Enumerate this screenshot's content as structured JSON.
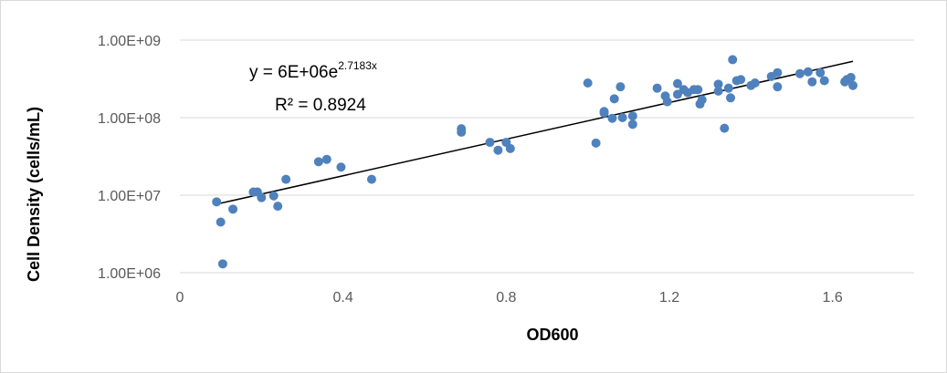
{
  "chart_data": {
    "type": "scatter",
    "xlabel": "OD600",
    "ylabel": "Cell Density (cells/mL)",
    "x_ticks": [
      "0",
      "0.4",
      "0.8",
      "1.2",
      "1.6"
    ],
    "y_ticks": [
      "1.00E+06",
      "1.00E+07",
      "1.00E+08",
      "1.00E+09"
    ],
    "xlim": [
      0,
      1.8
    ],
    "ylim": [
      1000000,
      1000000000
    ],
    "y_scale": "log",
    "grid": "horizontal",
    "legend": "none",
    "colors": {
      "points": "#4f81bd",
      "trendline": "#000000",
      "grid": "#d9d9d9"
    },
    "trendline": {
      "type": "exponential",
      "a": 6000000,
      "b": 2.7183,
      "x_range": [
        0.09,
        1.65
      ],
      "equation_prefix": "y = 6E+06e",
      "equation_exponent": "2.7183x",
      "r_squared_label": "R² = 0.8924"
    },
    "points": [
      [
        0.09,
        8200000
      ],
      [
        0.1,
        4500000
      ],
      [
        0.105,
        1300000
      ],
      [
        0.13,
        6600000
      ],
      [
        0.18,
        11000000
      ],
      [
        0.19,
        11000000
      ],
      [
        0.2,
        9300000
      ],
      [
        0.23,
        9800000
      ],
      [
        0.24,
        7200000
      ],
      [
        0.26,
        16000000
      ],
      [
        0.34,
        27000000
      ],
      [
        0.36,
        29000000
      ],
      [
        0.395,
        23000000
      ],
      [
        0.47,
        16000000
      ],
      [
        0.69,
        72000000
      ],
      [
        0.69,
        65000000
      ],
      [
        0.76,
        48000000
      ],
      [
        0.78,
        38000000
      ],
      [
        0.8,
        48000000
      ],
      [
        0.81,
        40000000
      ],
      [
        1.0,
        280000000
      ],
      [
        1.02,
        47000000
      ],
      [
        1.04,
        120000000
      ],
      [
        1.04,
        115000000
      ],
      [
        1.06,
        98000000
      ],
      [
        1.065,
        175000000
      ],
      [
        1.08,
        250000000
      ],
      [
        1.085,
        100000000
      ],
      [
        1.11,
        105000000
      ],
      [
        1.11,
        82000000
      ],
      [
        1.17,
        240000000
      ],
      [
        1.19,
        190000000
      ],
      [
        1.195,
        160000000
      ],
      [
        1.22,
        200000000
      ],
      [
        1.22,
        275000000
      ],
      [
        1.235,
        230000000
      ],
      [
        1.245,
        210000000
      ],
      [
        1.26,
        230000000
      ],
      [
        1.27,
        230000000
      ],
      [
        1.275,
        150000000
      ],
      [
        1.28,
        170000000
      ],
      [
        1.32,
        270000000
      ],
      [
        1.32,
        220000000
      ],
      [
        1.335,
        73000000
      ],
      [
        1.345,
        240000000
      ],
      [
        1.35,
        180000000
      ],
      [
        1.355,
        560000000
      ],
      [
        1.365,
        300000000
      ],
      [
        1.375,
        310000000
      ],
      [
        1.4,
        260000000
      ],
      [
        1.41,
        280000000
      ],
      [
        1.45,
        340000000
      ],
      [
        1.465,
        380000000
      ],
      [
        1.465,
        250000000
      ],
      [
        1.52,
        370000000
      ],
      [
        1.54,
        390000000
      ],
      [
        1.55,
        290000000
      ],
      [
        1.57,
        380000000
      ],
      [
        1.58,
        300000000
      ],
      [
        1.63,
        290000000
      ],
      [
        1.635,
        310000000
      ],
      [
        1.645,
        330000000
      ],
      [
        1.65,
        260000000
      ]
    ]
  }
}
